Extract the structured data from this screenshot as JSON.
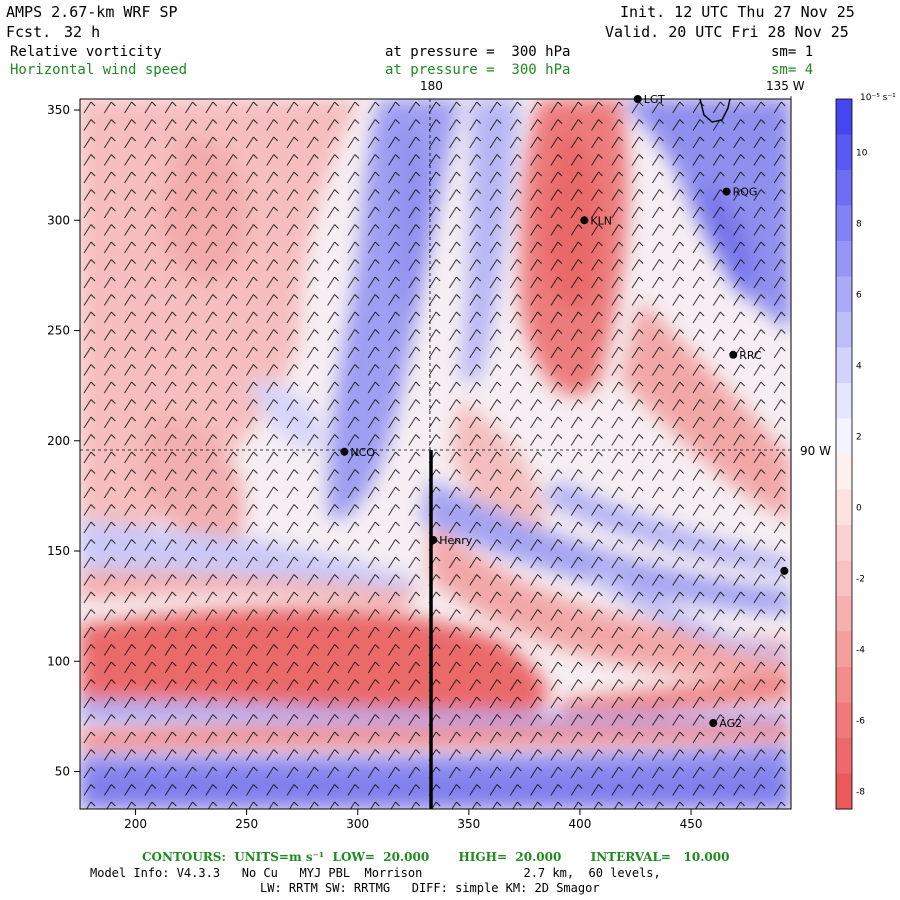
{
  "header": {
    "model": "AMPS 2.67-km WRF SP",
    "fcst_label": "Fcst.",
    "fcst_value": "32 h",
    "init": "Init. 12 UTC Thu 27 Nov 25",
    "valid": "Valid. 20 UTC Fri 28 Nov 25",
    "field1": "Relative vorticity",
    "field1_level": "at pressure =  300 hPa",
    "field1_sm": "sm= 1",
    "field2": "Horizontal wind speed",
    "field2_level": "at pressure =  300 hPa",
    "field2_sm": "sm= 4"
  },
  "axes": {
    "x_ticks": [
      "200",
      "250",
      "300",
      "350",
      "400",
      "450"
    ],
    "x_values": [
      200,
      250,
      300,
      350,
      400,
      450
    ],
    "y_ticks": [
      "350",
      "300",
      "250",
      "200",
      "150",
      "100",
      "50"
    ],
    "y_values": [
      350,
      300,
      250,
      200,
      150,
      100,
      50
    ],
    "x_range": [
      175,
      495
    ],
    "y_range": [
      33,
      355
    ]
  },
  "gridlines": {
    "lon_180": "180",
    "lon_135w": "135 W",
    "lat_90w": "90 W"
  },
  "stations": [
    {
      "name": "LGT",
      "x": 426,
      "y": 355
    },
    {
      "name": "RQG",
      "x": 466,
      "y": 313
    },
    {
      "name": "KLN",
      "x": 402,
      "y": 300
    },
    {
      "name": "RRC",
      "x": 469,
      "y": 239
    },
    {
      "name": "NCO",
      "x": 294,
      "y": 195
    },
    {
      "name": "Henry",
      "x": 334,
      "y": 155
    },
    {
      "name": "",
      "x": 492,
      "y": 141
    },
    {
      "name": "AG2",
      "x": 460,
      "y": 72
    }
  ],
  "colorbar": {
    "unit": "10⁻⁵ s⁻¹",
    "labels": [
      "10",
      "8",
      "6",
      "4",
      "2",
      "0",
      "-2",
      "-4",
      "-6",
      "-8"
    ],
    "colors": [
      "#4646f0",
      "#5a5af2",
      "#6e6ef4",
      "#8282f6",
      "#9696f8",
      "#aaaaf9",
      "#bebefb",
      "#d2d2fc",
      "#e6e6fe",
      "#f4f4ff",
      "#fff0f0",
      "#fee2e2",
      "#fbd2d2",
      "#f9c2c2",
      "#f6b0b0",
      "#f49e9e",
      "#f28c8c",
      "#f07a7a",
      "#ee6a6a",
      "#ea5a5a"
    ]
  },
  "footer": {
    "contours": "CONTOURS:  UNITS=m s⁻¹  LOW=  20.000       HIGH=  20.000       INTERVAL=   10.000",
    "model_info": "Model Info: V4.3.3   No Cu   MYJ PBL  Morrison              2.7 km,  60 levels,",
    "physics": "LW: RRTM SW: RRTMG   DIFF: simple KM: 2D Smagor"
  }
}
